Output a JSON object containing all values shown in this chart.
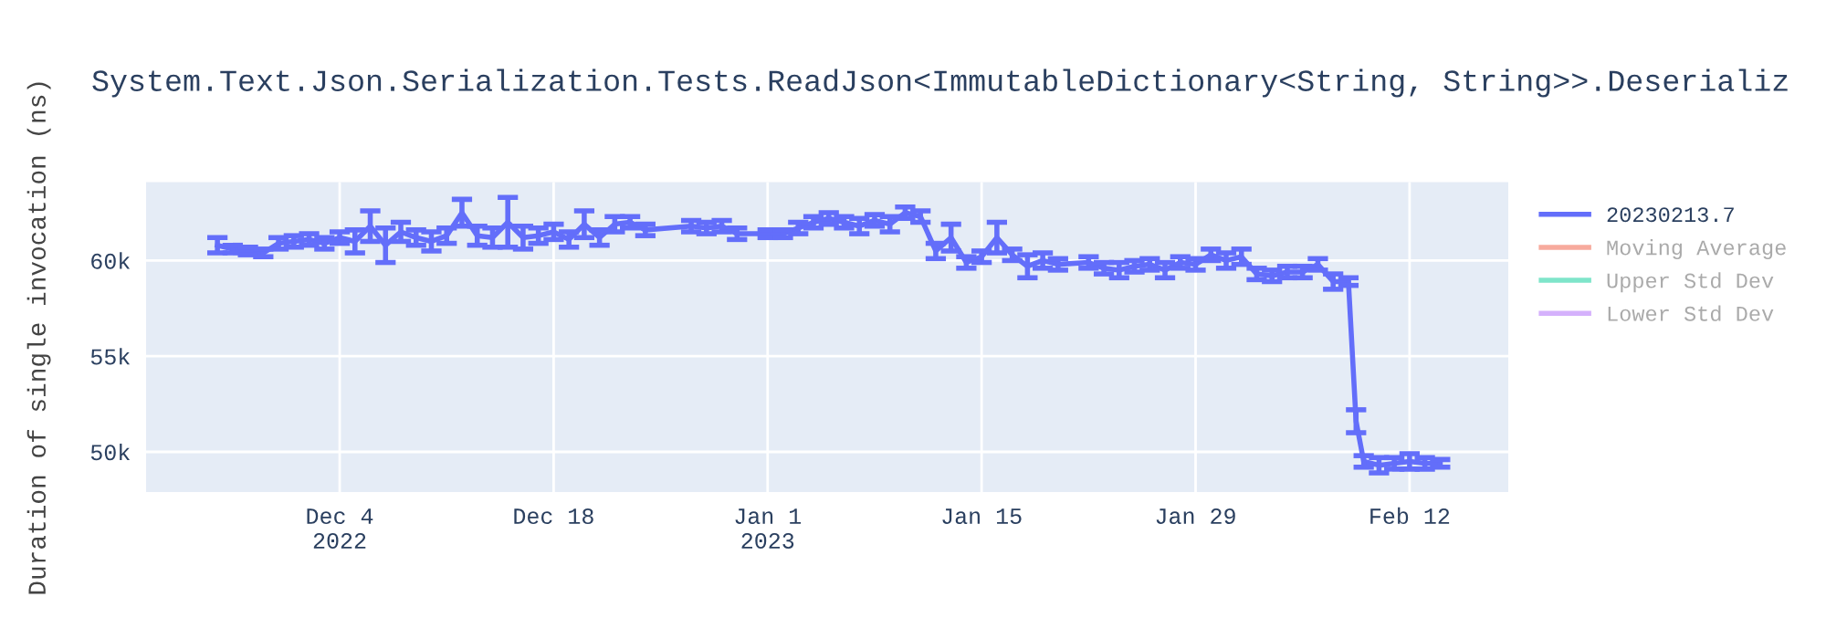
{
  "chart_data": {
    "type": "line",
    "title": "System.Text.Json.Serialization.Tests.ReadJson<ImmutableDictionary<String, String>>.Deserializ",
    "ylabel": "Duration of single invocation (ns)",
    "x": [
      "2022-11-26",
      "2022-11-27",
      "2022-11-28",
      "2022-11-29",
      "2022-11-30",
      "2022-12-01",
      "2022-12-02",
      "2022-12-03",
      "2022-12-04",
      "2022-12-05",
      "2022-12-06",
      "2022-12-07",
      "2022-12-08",
      "2022-12-09",
      "2022-12-10",
      "2022-12-11",
      "2022-12-12",
      "2022-12-13",
      "2022-12-14",
      "2022-12-15",
      "2022-12-16",
      "2022-12-17",
      "2022-12-18",
      "2022-12-19",
      "2022-12-20",
      "2022-12-21",
      "2022-12-22",
      "2022-12-23",
      "2022-12-24",
      "2022-12-27",
      "2022-12-28",
      "2022-12-29",
      "2022-12-30",
      "2023-01-01",
      "2023-01-02",
      "2023-01-03",
      "2023-01-04",
      "2023-01-05",
      "2023-01-06",
      "2023-01-07",
      "2023-01-08",
      "2023-01-09",
      "2023-01-10",
      "2023-01-11",
      "2023-01-12",
      "2023-01-13",
      "2023-01-14",
      "2023-01-15",
      "2023-01-16",
      "2023-01-17",
      "2023-01-18",
      "2023-01-19",
      "2023-01-20",
      "2023-01-22",
      "2023-01-23",
      "2023-01-24",
      "2023-01-25",
      "2023-01-26",
      "2023-01-27",
      "2023-01-28",
      "2023-01-29",
      "2023-01-30",
      "2023-01-31",
      "2023-02-01",
      "2023-02-02",
      "2023-02-03",
      "2023-02-04",
      "2023-02-05",
      "2023-02-06",
      "2023-02-07",
      "2023-02-08",
      "2023-02-08T12:00",
      "2023-02-09",
      "2023-02-10",
      "2023-02-11",
      "2023-02-12",
      "2023-02-13",
      "2023-02-14"
    ],
    "series": [
      {
        "name": "20230213.7",
        "color": "#636efa",
        "values": [
          60800,
          60600,
          60500,
          60400,
          60900,
          61000,
          61100,
          60900,
          61200,
          61000,
          61800,
          60800,
          61500,
          61200,
          61000,
          61300,
          62500,
          61300,
          61200,
          62000,
          61200,
          61300,
          61500,
          61100,
          61900,
          61200,
          61900,
          62000,
          61600,
          61800,
          61700,
          61800,
          61400,
          61400,
          61400,
          61700,
          62000,
          62200,
          62000,
          61800,
          62100,
          61900,
          62500,
          62300,
          60500,
          61200,
          59900,
          60200,
          61200,
          60300,
          59700,
          60000,
          59800,
          59900,
          59600,
          59500,
          59700,
          59800,
          59500,
          59900,
          59800,
          60300,
          60000,
          60200,
          59300,
          59200,
          59400,
          59400,
          59800,
          58900,
          58900,
          51600,
          49500,
          49300,
          49400,
          49500,
          49400,
          49400
        ],
        "errors": [
          400,
          200,
          200,
          200,
          300,
          300,
          300,
          300,
          300,
          600,
          800,
          900,
          500,
          400,
          500,
          400,
          700,
          500,
          500,
          1300,
          600,
          400,
          400,
          400,
          700,
          400,
          400,
          300,
          300,
          300,
          300,
          300,
          300,
          200,
          200,
          300,
          300,
          300,
          300,
          400,
          300,
          400,
          300,
          300,
          400,
          700,
          300,
          300,
          800,
          300,
          600,
          400,
          300,
          300,
          300,
          400,
          300,
          300,
          400,
          300,
          300,
          300,
          400,
          400,
          300,
          300,
          300,
          300,
          300,
          400,
          200,
          600,
          300,
          400,
          300,
          400,
          300,
          200
        ]
      },
      {
        "name": "Moving Average",
        "color": "#ef553b",
        "values": [
          null,
          null,
          null,
          null,
          null,
          null,
          null,
          null,
          null,
          null,
          null,
          null,
          null,
          null,
          null,
          null,
          null,
          null,
          null,
          null,
          null,
          null,
          null,
          null,
          null,
          null,
          null,
          null,
          null,
          null,
          null,
          null,
          null,
          null,
          null,
          null,
          null,
          null,
          null,
          null,
          null,
          null,
          null,
          null,
          null,
          null,
          null,
          null,
          null,
          null,
          null,
          null,
          null,
          null,
          null,
          null,
          null,
          null,
          null,
          null,
          null,
          null,
          null,
          null,
          null,
          null,
          null,
          null,
          null,
          null,
          null,
          null,
          null,
          null,
          null,
          null,
          null,
          null
        ]
      },
      {
        "name": "Upper Std Dev",
        "color": "#00cc96",
        "values": [
          null,
          null,
          null,
          null,
          null,
          null,
          null,
          null,
          null,
          null,
          null,
          null,
          null,
          null,
          null,
          null,
          null,
          null,
          null,
          null,
          null,
          null,
          null,
          null,
          null,
          null,
          null,
          null,
          null,
          null,
          null,
          null,
          null,
          null,
          null,
          null,
          null,
          null,
          null,
          null,
          null,
          null,
          null,
          null,
          null,
          null,
          null,
          null,
          null,
          null,
          null,
          null,
          null,
          null,
          null,
          null,
          null,
          null,
          null,
          null,
          null,
          null,
          null,
          null,
          null,
          null,
          null,
          null,
          null,
          null,
          null,
          null,
          null,
          null,
          null,
          null,
          null,
          null
        ]
      },
      {
        "name": "Lower Std Dev",
        "color": "#ab63fa",
        "values": [
          null,
          null,
          null,
          null,
          null,
          null,
          null,
          null,
          null,
          null,
          null,
          null,
          null,
          null,
          null,
          null,
          null,
          null,
          null,
          null,
          null,
          null,
          null,
          null,
          null,
          null,
          null,
          null,
          null,
          null,
          null,
          null,
          null,
          null,
          null,
          null,
          null,
          null,
          null,
          null,
          null,
          null,
          null,
          null,
          null,
          null,
          null,
          null,
          null,
          null,
          null,
          null,
          null,
          null,
          null,
          null,
          null,
          null,
          null,
          null,
          null,
          null,
          null,
          null,
          null,
          null,
          null,
          null,
          null,
          null,
          null,
          null,
          null,
          null,
          null,
          null,
          null,
          null
        ]
      }
    ],
    "xlim": [
      "2022-11-21T08:00",
      "2023-02-18T11:00"
    ],
    "xticks": [
      {
        "value": "2022-12-04",
        "label": "Dec 4\n2022"
      },
      {
        "value": "2022-12-18",
        "label": "Dec 18"
      },
      {
        "value": "2023-01-01",
        "label": "Jan 1\n2023"
      },
      {
        "value": "2023-01-15",
        "label": "Jan 15"
      },
      {
        "value": "2023-01-29",
        "label": "Jan 29"
      },
      {
        "value": "2023-02-12",
        "label": "Feb 12"
      }
    ],
    "ylim": [
      47900,
      64100
    ],
    "yticks": [
      {
        "value": 50000,
        "label": "50k"
      },
      {
        "value": 55000,
        "label": "55k"
      },
      {
        "value": 60000,
        "label": "60k"
      }
    ],
    "grid": true,
    "legend": "right",
    "marker": "none",
    "line_style": "solid"
  }
}
